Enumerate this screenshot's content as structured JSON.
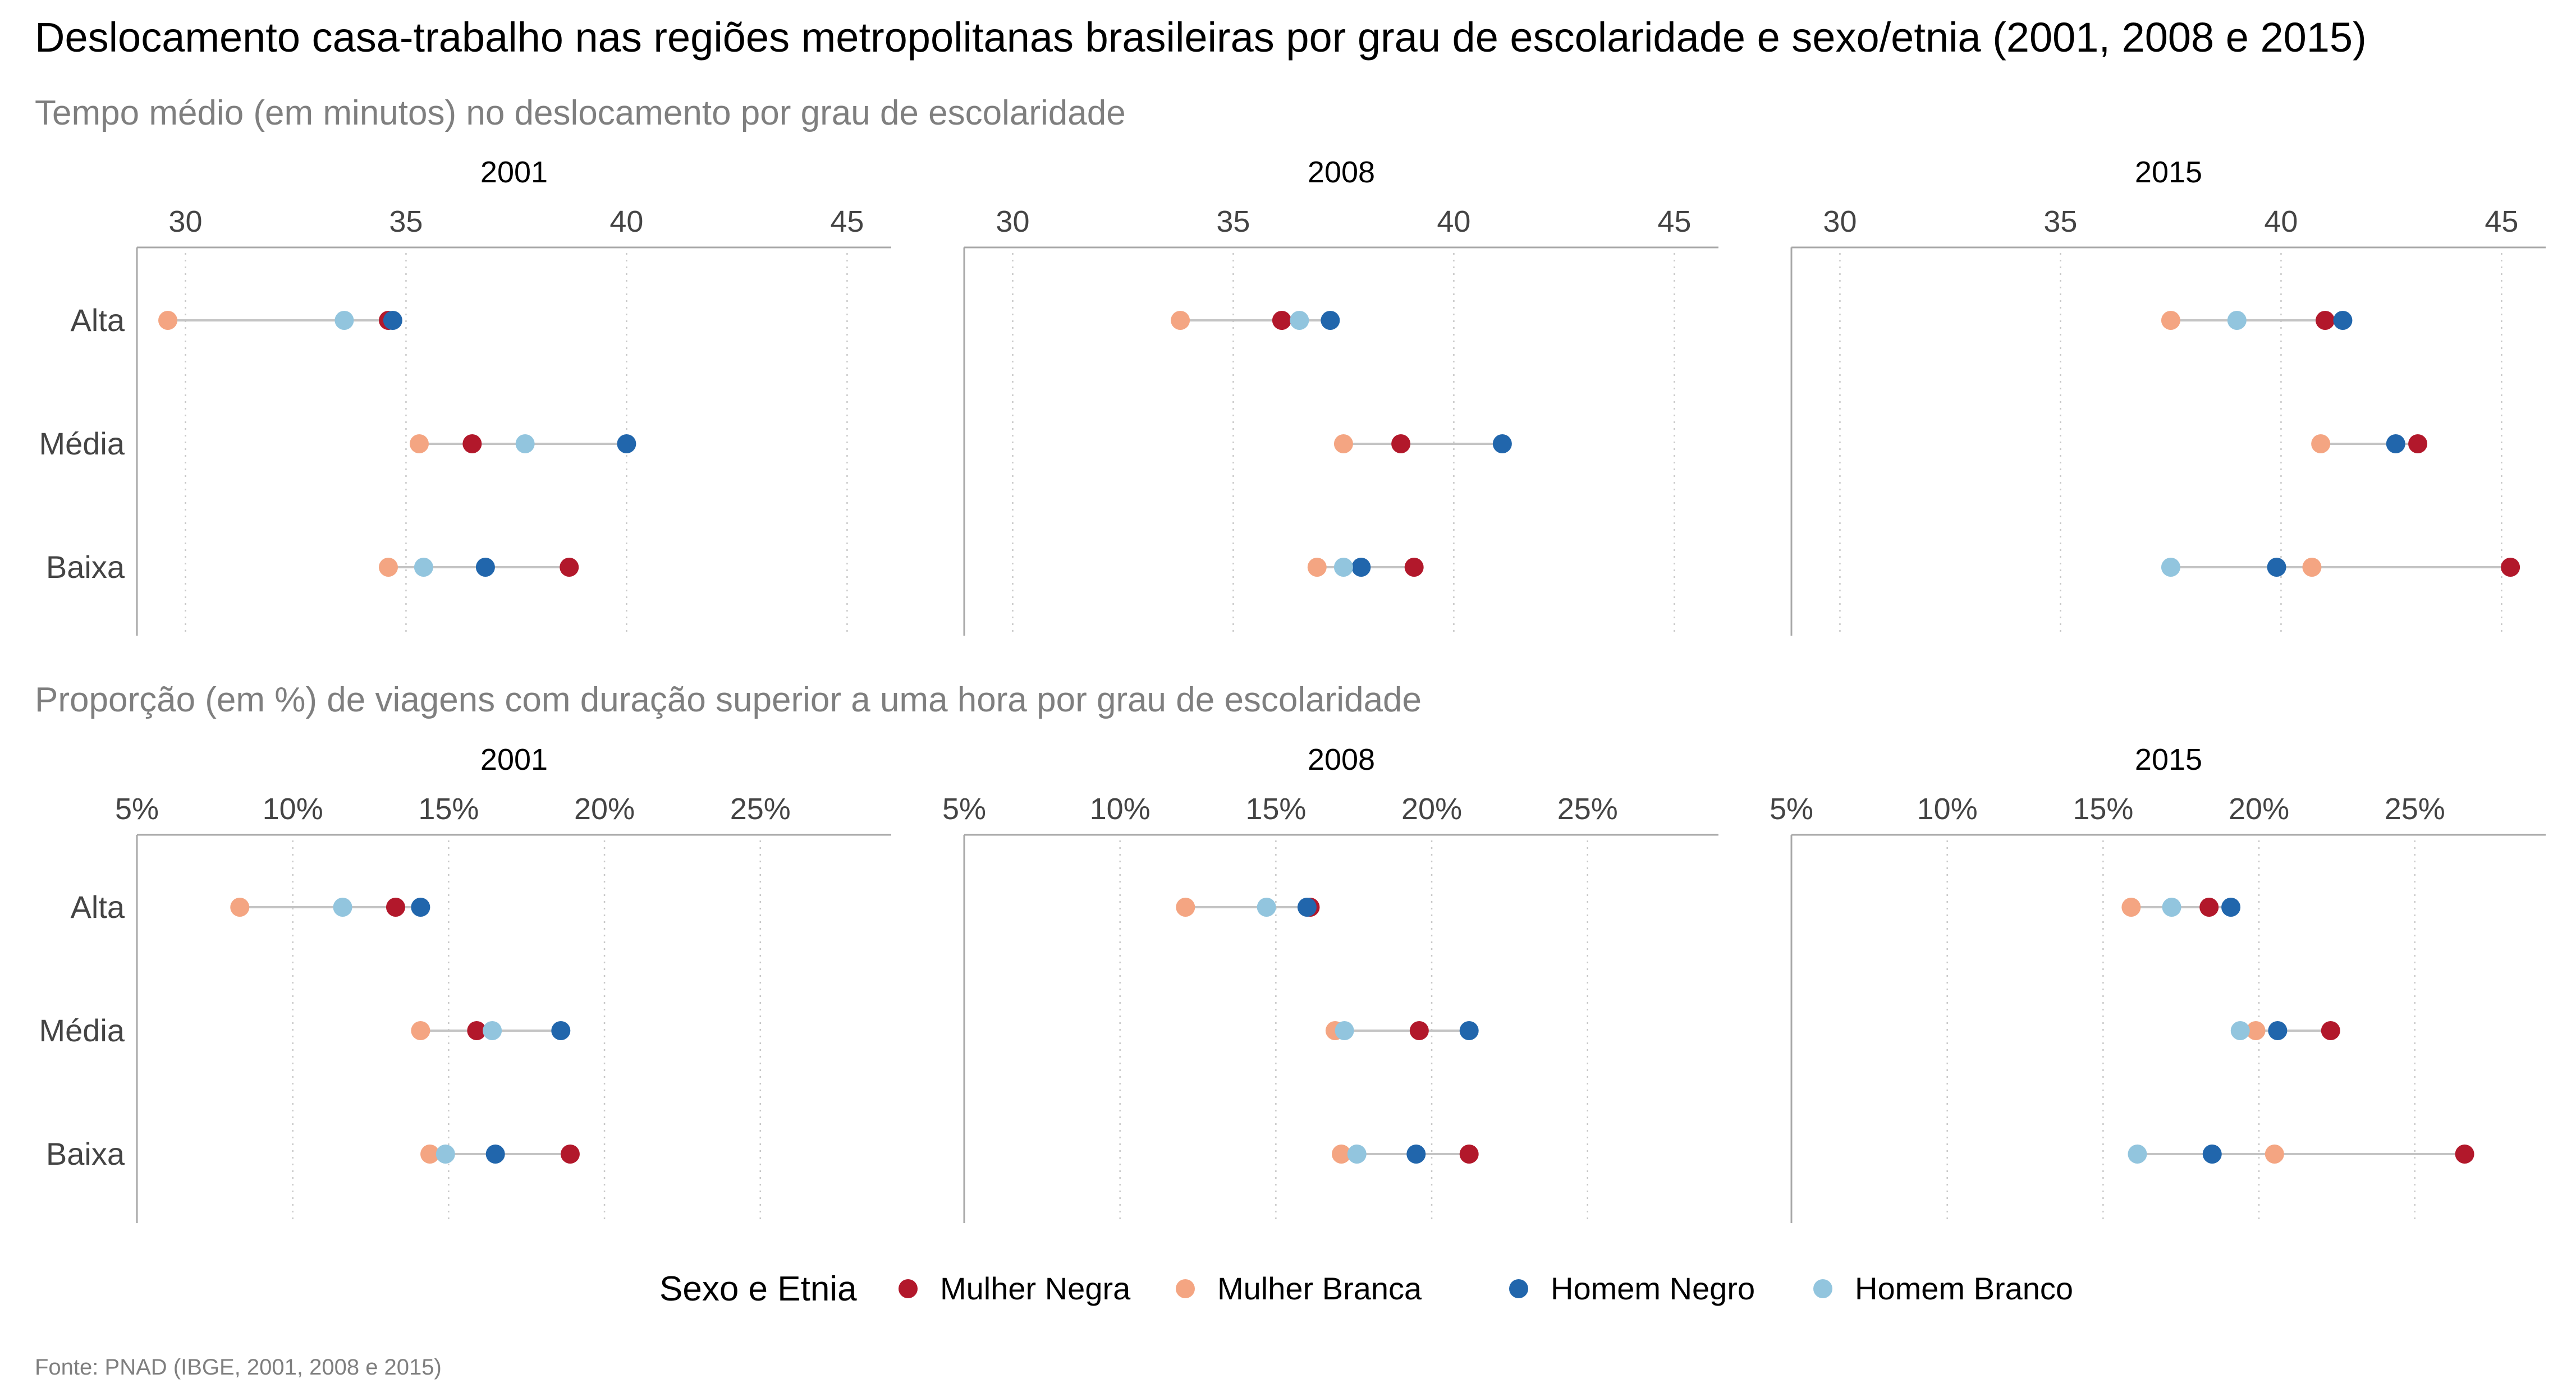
{
  "title": "Deslocamento casa-trabalho nas regiões metropolitanas brasileiras por grau de escolaridade e sexo/etnia (2001, 2008 e 2015)",
  "caption": "Fonte: PNAD (IBGE, 2001, 2008 e 2015)",
  "legend": {
    "title": "Sexo e Etnia",
    "items": [
      {
        "label": "Mulher Negra",
        "color": "#B2182B"
      },
      {
        "label": "Mulher Branca",
        "color": "#F4A582"
      },
      {
        "label": "Homem Negro",
        "color": "#2166AC"
      },
      {
        "label": "Homem Branco",
        "color": "#92C5DE"
      }
    ]
  },
  "chart_data": [
    {
      "type": "scatter",
      "subtitle": "Tempo médio (em minutos) no deslocamento por grau de escolaridade",
      "categories": [
        "Alta",
        "Média",
        "Baixa"
      ],
      "ticks": [
        30,
        35,
        40,
        45
      ],
      "tick_labels": [
        "30",
        "35",
        "40",
        "45"
      ],
      "xlim": [
        28.9,
        46
      ],
      "grid": "vertical dotted",
      "facets": [
        {
          "label": "2001",
          "series": [
            {
              "name": "Mulher Negra",
              "values": [
                34.6,
                36.5,
                38.7
              ]
            },
            {
              "name": "Mulher Branca",
              "values": [
                29.6,
                35.3,
                34.6
              ]
            },
            {
              "name": "Homem Negro",
              "values": [
                34.7,
                40.0,
                36.8
              ]
            },
            {
              "name": "Homem Branco",
              "values": [
                33.6,
                37.7,
                35.4
              ]
            }
          ]
        },
        {
          "label": "2008",
          "series": [
            {
              "name": "Mulher Negra",
              "values": [
                36.1,
                38.8,
                39.1
              ]
            },
            {
              "name": "Mulher Branca",
              "values": [
                33.8,
                37.5,
                36.9
              ]
            },
            {
              "name": "Homem Negro",
              "values": [
                37.2,
                41.1,
                37.9
              ]
            },
            {
              "name": "Homem Branco",
              "values": [
                36.5,
                null,
                37.5
              ]
            }
          ]
        },
        {
          "label": "2015",
          "series": [
            {
              "name": "Mulher Negra",
              "values": [
                41.0,
                43.1,
                45.2
              ]
            },
            {
              "name": "Mulher Branca",
              "values": [
                37.5,
                40.9,
                40.7
              ]
            },
            {
              "name": "Homem Negro",
              "values": [
                41.4,
                42.6,
                39.9
              ]
            },
            {
              "name": "Homem Branco",
              "values": [
                39.0,
                null,
                37.5
              ]
            }
          ]
        }
      ]
    },
    {
      "type": "scatter",
      "subtitle": "Proporção (em %) de viagens com duração superior a uma hora por grau de escolaridade",
      "categories": [
        "Alta",
        "Média",
        "Baixa"
      ],
      "ticks": [
        5,
        10,
        15,
        20,
        25
      ],
      "tick_labels": [
        "5%",
        "10%",
        "15%",
        "20%",
        "25%"
      ],
      "xlim": [
        5,
        29.2
      ],
      "grid": "vertical dotted",
      "facets": [
        {
          "label": "2001",
          "series": [
            {
              "name": "Mulher Negra",
              "values": [
                13.3,
                15.9,
                18.9
              ]
            },
            {
              "name": "Mulher Branca",
              "values": [
                8.3,
                14.1,
                14.4
              ]
            },
            {
              "name": "Homem Negro",
              "values": [
                14.1,
                18.6,
                16.5
              ]
            },
            {
              "name": "Homem Branco",
              "values": [
                11.6,
                16.4,
                14.9
              ]
            }
          ]
        },
        {
          "label": "2008",
          "series": [
            {
              "name": "Mulher Negra",
              "values": [
                16.1,
                19.6,
                21.2
              ]
            },
            {
              "name": "Mulher Branca",
              "values": [
                12.1,
                16.9,
                17.1
              ]
            },
            {
              "name": "Homem Negro",
              "values": [
                16.0,
                21.2,
                19.5
              ]
            },
            {
              "name": "Homem Branco",
              "values": [
                14.7,
                17.2,
                17.6
              ]
            }
          ]
        },
        {
          "label": "2015",
          "series": [
            {
              "name": "Mulher Negra",
              "values": [
                18.4,
                22.3,
                26.6
              ]
            },
            {
              "name": "Mulher Branca",
              "values": [
                15.9,
                19.9,
                20.5
              ]
            },
            {
              "name": "Homem Negro",
              "values": [
                19.1,
                20.6,
                18.5
              ]
            },
            {
              "name": "Homem Branco",
              "values": [
                17.2,
                19.4,
                16.1
              ]
            }
          ]
        }
      ]
    }
  ]
}
